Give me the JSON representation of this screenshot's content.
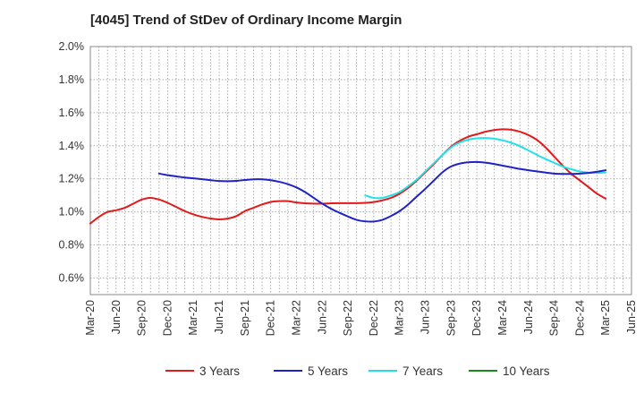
{
  "chart_data": {
    "type": "line",
    "title": "[4045]  Trend of StDev of Ordinary Income Margin",
    "xlabel": "",
    "ylabel": "",
    "x_ticks": [
      "Mar-20",
      "Jun-20",
      "Sep-20",
      "Dec-20",
      "Mar-21",
      "Jun-21",
      "Sep-21",
      "Dec-21",
      "Mar-22",
      "Jun-22",
      "Sep-22",
      "Dec-22",
      "Mar-23",
      "Jun-23",
      "Sep-23",
      "Dec-23",
      "Mar-24",
      "Jun-24",
      "Sep-24",
      "Dec-24",
      "Mar-25",
      "Jun-25"
    ],
    "y_ticks": [
      "0.6%",
      "0.8%",
      "1.0%",
      "1.2%",
      "1.4%",
      "1.6%",
      "1.8%",
      "2.0%"
    ],
    "ylim": [
      0.5,
      2.0
    ],
    "grid": true,
    "legend_position": "bottom",
    "series": [
      {
        "name": "3 Years",
        "color": "#e31a1c",
        "points": [
          [
            "Mar-20",
            0.93
          ],
          [
            "Apr-20",
            0.97
          ],
          [
            "May-20",
            1.0
          ],
          [
            "Jun-20",
            1.01
          ],
          [
            "Jul-20",
            1.025
          ],
          [
            "Aug-20",
            1.05
          ],
          [
            "Sep-20",
            1.075
          ],
          [
            "Oct-20",
            1.085
          ],
          [
            "Nov-20",
            1.075
          ],
          [
            "Dec-20",
            1.055
          ],
          [
            "Jan-21",
            1.03
          ],
          [
            "Feb-21",
            1.005
          ],
          [
            "Mar-21",
            0.985
          ],
          [
            "Apr-21",
            0.97
          ],
          [
            "May-21",
            0.96
          ],
          [
            "Jun-21",
            0.955
          ],
          [
            "Jul-21",
            0.96
          ],
          [
            "Aug-21",
            0.975
          ],
          [
            "Sep-21",
            1.005
          ],
          [
            "Oct-21",
            1.025
          ],
          [
            "Nov-21",
            1.045
          ],
          [
            "Dec-21",
            1.06
          ],
          [
            "Jan-22",
            1.065
          ],
          [
            "Feb-22",
            1.065
          ],
          [
            "Mar-22",
            1.057
          ],
          [
            "Apr-22",
            1.052
          ],
          [
            "May-22",
            1.05
          ],
          [
            "Jun-22",
            1.05
          ],
          [
            "Jul-22",
            1.052
          ],
          [
            "Aug-22",
            1.053
          ],
          [
            "Sep-22",
            1.053
          ],
          [
            "Oct-22",
            1.053
          ],
          [
            "Nov-22",
            1.055
          ],
          [
            "Dec-22",
            1.06
          ],
          [
            "Jan-23",
            1.07
          ],
          [
            "Feb-23",
            1.085
          ],
          [
            "Mar-23",
            1.11
          ],
          [
            "Apr-23",
            1.145
          ],
          [
            "May-23",
            1.19
          ],
          [
            "Jun-23",
            1.24
          ],
          [
            "Jul-23",
            1.29
          ],
          [
            "Aug-23",
            1.345
          ],
          [
            "Sep-23",
            1.395
          ],
          [
            "Oct-23",
            1.43
          ],
          [
            "Nov-23",
            1.455
          ],
          [
            "Dec-23",
            1.47
          ],
          [
            "Jan-24",
            1.485
          ],
          [
            "Feb-24",
            1.495
          ],
          [
            "Mar-24",
            1.5
          ],
          [
            "Apr-24",
            1.497
          ],
          [
            "May-24",
            1.485
          ],
          [
            "Jun-24",
            1.465
          ],
          [
            "Jul-24",
            1.435
          ],
          [
            "Aug-24",
            1.39
          ],
          [
            "Sep-24",
            1.335
          ],
          [
            "Oct-24",
            1.28
          ],
          [
            "Nov-24",
            1.23
          ],
          [
            "Dec-24",
            1.19
          ],
          [
            "Jan-25",
            1.15
          ],
          [
            "Feb-25",
            1.11
          ],
          [
            "Mar-25",
            1.08
          ]
        ]
      },
      {
        "name": "5 Years",
        "color": "#1f22c7",
        "points": [
          [
            "Nov-20",
            1.232
          ],
          [
            "Dec-20",
            1.222
          ],
          [
            "Jan-21",
            1.215
          ],
          [
            "Feb-21",
            1.208
          ],
          [
            "Mar-21",
            1.203
          ],
          [
            "Apr-21",
            1.198
          ],
          [
            "May-21",
            1.192
          ],
          [
            "Jun-21",
            1.187
          ],
          [
            "Jul-21",
            1.186
          ],
          [
            "Aug-21",
            1.188
          ],
          [
            "Sep-21",
            1.193
          ],
          [
            "Oct-21",
            1.197
          ],
          [
            "Nov-21",
            1.197
          ],
          [
            "Dec-21",
            1.192
          ],
          [
            "Jan-22",
            1.182
          ],
          [
            "Feb-22",
            1.168
          ],
          [
            "Mar-22",
            1.148
          ],
          [
            "Apr-22",
            1.12
          ],
          [
            "May-22",
            1.085
          ],
          [
            "Jun-22",
            1.05
          ],
          [
            "Jul-22",
            1.02
          ],
          [
            "Aug-22",
            0.995
          ],
          [
            "Sep-22",
            0.972
          ],
          [
            "Oct-22",
            0.952
          ],
          [
            "Nov-22",
            0.943
          ],
          [
            "Dec-22",
            0.942
          ],
          [
            "Jan-23",
            0.952
          ],
          [
            "Feb-23",
            0.975
          ],
          [
            "Mar-23",
            1.005
          ],
          [
            "Apr-23",
            1.045
          ],
          [
            "May-23",
            1.093
          ],
          [
            "Jun-23",
            1.14
          ],
          [
            "Jul-23",
            1.19
          ],
          [
            "Aug-23",
            1.24
          ],
          [
            "Sep-23",
            1.275
          ],
          [
            "Oct-23",
            1.292
          ],
          [
            "Nov-23",
            1.3
          ],
          [
            "Dec-23",
            1.302
          ],
          [
            "Jan-24",
            1.298
          ],
          [
            "Feb-24",
            1.29
          ],
          [
            "Mar-24",
            1.28
          ],
          [
            "Apr-24",
            1.27
          ],
          [
            "May-24",
            1.26
          ],
          [
            "Jun-24",
            1.252
          ],
          [
            "Jul-24",
            1.245
          ],
          [
            "Aug-24",
            1.238
          ],
          [
            "Sep-24",
            1.232
          ],
          [
            "Oct-24",
            1.23
          ],
          [
            "Nov-24",
            1.23
          ],
          [
            "Dec-24",
            1.232
          ],
          [
            "Jan-25",
            1.236
          ],
          [
            "Feb-25",
            1.243
          ],
          [
            "Mar-25",
            1.252
          ]
        ]
      },
      {
        "name": "7 Years",
        "color": "#22e0e8",
        "points": [
          [
            "Nov-22",
            1.1
          ],
          [
            "Dec-22",
            1.085
          ],
          [
            "Jan-23",
            1.085
          ],
          [
            "Feb-23",
            1.1
          ],
          [
            "Mar-23",
            1.12
          ],
          [
            "Apr-23",
            1.155
          ],
          [
            "May-23",
            1.195
          ],
          [
            "Jun-23",
            1.245
          ],
          [
            "Jul-23",
            1.295
          ],
          [
            "Aug-23",
            1.345
          ],
          [
            "Sep-23",
            1.39
          ],
          [
            "Oct-23",
            1.42
          ],
          [
            "Nov-23",
            1.437
          ],
          [
            "Dec-23",
            1.445
          ],
          [
            "Jan-24",
            1.447
          ],
          [
            "Feb-24",
            1.443
          ],
          [
            "Mar-24",
            1.433
          ],
          [
            "Apr-24",
            1.418
          ],
          [
            "May-24",
            1.398
          ],
          [
            "Jun-24",
            1.372
          ],
          [
            "Jul-24",
            1.345
          ],
          [
            "Aug-24",
            1.32
          ],
          [
            "Sep-24",
            1.297
          ],
          [
            "Oct-24",
            1.275
          ],
          [
            "Nov-24",
            1.258
          ],
          [
            "Dec-24",
            1.245
          ],
          [
            "Jan-25",
            1.238
          ],
          [
            "Feb-25",
            1.236
          ],
          [
            "Mar-25",
            1.238
          ]
        ]
      },
      {
        "name": "10 Years",
        "color": "#1a8a1a",
        "points": []
      }
    ]
  }
}
